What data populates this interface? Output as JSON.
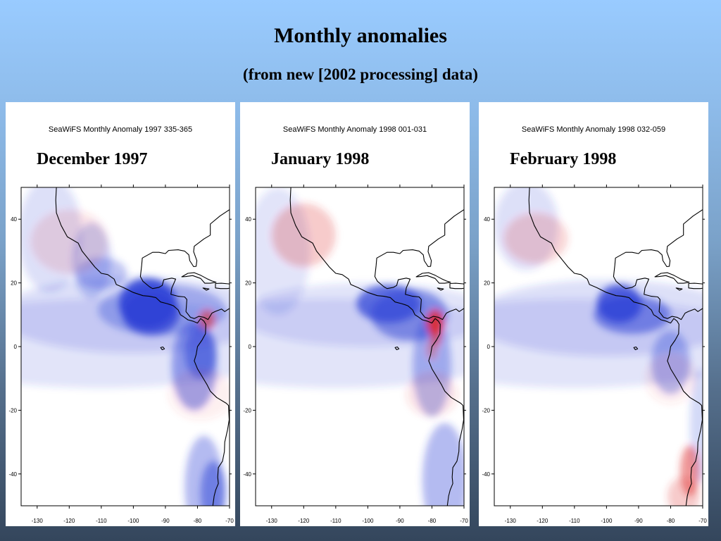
{
  "title": "Monthly anomalies",
  "subtitle": "(from new [2002 processing] data)",
  "panels": [
    {
      "header": "SeaWiFS Monthly Anomaly 1997  335-365",
      "label": "December 1997",
      "yticks": [
        "40",
        "20",
        "0",
        "-20",
        "-40"
      ],
      "xticks": [
        "-130",
        "-120",
        "-110",
        "-100",
        "-90",
        "-80",
        "-70"
      ]
    },
    {
      "header": "SeaWiFS Monthly Anomaly 1998  001-031",
      "label": "January 1998",
      "yticks": [
        "40",
        "20",
        "0",
        "-20",
        "-40"
      ],
      "xticks": [
        "-130",
        "-120",
        "-110",
        "-100",
        "-90",
        "-80",
        "-70"
      ]
    },
    {
      "header": "SeaWiFS Monthly Anomaly 1998  032-059",
      "label": "February 1998",
      "yticks": [
        "40",
        "20",
        "0",
        "-20",
        "-40"
      ],
      "xticks": [
        "-130",
        "-120",
        "-110",
        "-100",
        "-90",
        "-80",
        "-70"
      ]
    }
  ],
  "colors": {
    "negative_anomaly": "#2a3fd6",
    "positive_anomaly": "#e03030"
  }
}
